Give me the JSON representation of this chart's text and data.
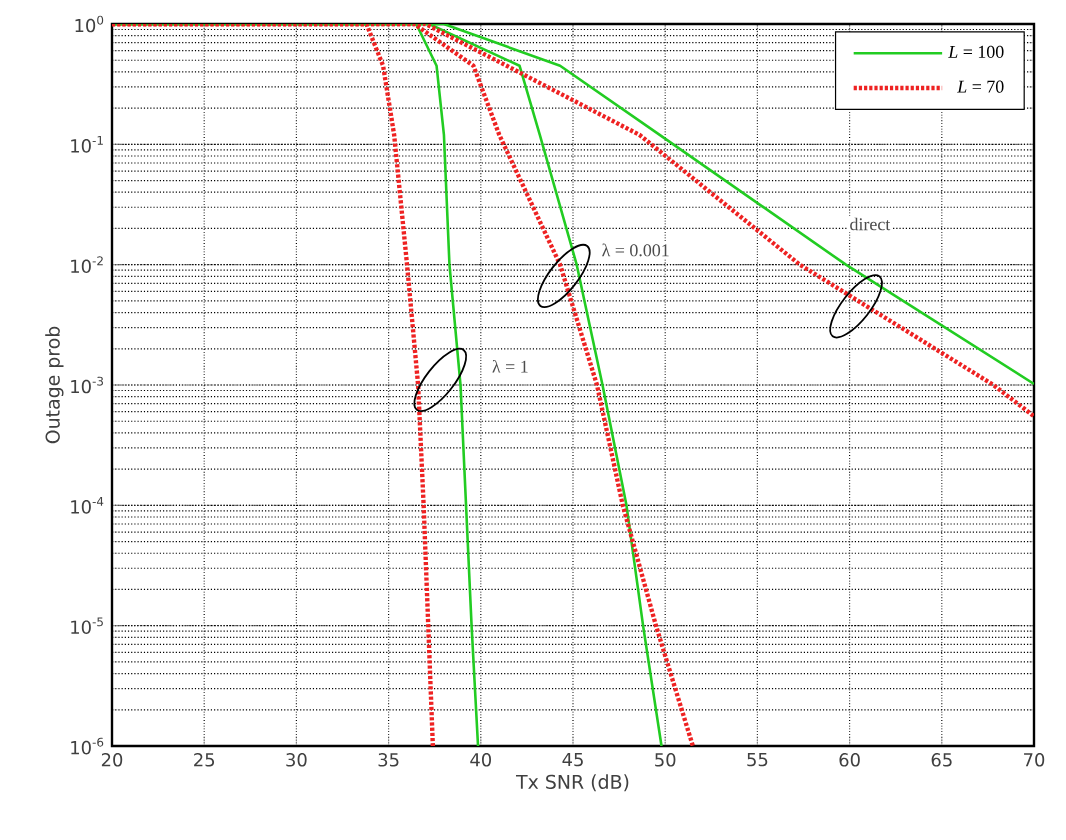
{
  "chart_data": {
    "type": "line",
    "xlabel": "Tx SNR (dB)",
    "ylabel": "Outage prob",
    "log": "y",
    "grid": true,
    "legend": "top right",
    "marker": "none",
    "xlim": [
      20,
      70
    ],
    "xticks": [
      20,
      25,
      30,
      35,
      40,
      45,
      50,
      55,
      60,
      65,
      70
    ],
    "ylim": [
      1e-06,
      1
    ],
    "yticks": [
      {
        "value": 1e-06,
        "label": "10$^{-6}$"
      },
      {
        "value": 1e-05,
        "label": "10$^{-5}$"
      },
      {
        "value": 0.0001,
        "label": "10$^{-4}$"
      },
      {
        "value": 0.001,
        "label": "10$^{-3}$"
      },
      {
        "value": 0.01,
        "label": "10$^{-2}$"
      },
      {
        "value": 0.1,
        "label": "10$^{-1}$"
      },
      {
        "value": 1,
        "label": "10$^{0}$"
      }
    ],
    "series": [
      {
        "name": "*L* = 100",
        "color": "#22cc22",
        "line_style": "solid",
        "x": [
          20,
          36.5,
          37.6,
          38.0,
          38.3,
          38.9,
          39.2,
          39.5,
          39.85
        ],
        "values": [
          1,
          1,
          0.45,
          0.12,
          0.01,
          0.001,
          0.0001,
          1e-05,
          1e-06
        ]
      },
      {
        "name": "*L* = 70",
        "color": "#ee2222",
        "line_style": "dotted",
        "x": [
          20,
          33.8,
          34.7,
          35.3,
          36.0,
          36.6,
          36.9,
          37.15,
          37.4
        ],
        "values": [
          1,
          1,
          0.45,
          0.12,
          0.01,
          0.001,
          0.0001,
          1e-05,
          1e-06
        ]
      },
      {
        "color": "#22cc22",
        "line_style": "solid",
        "x": [
          20,
          37.2,
          42.1,
          43.2,
          45.2,
          46.6,
          47.9,
          48.8,
          49.8
        ],
        "values": [
          1,
          1,
          0.45,
          0.12,
          0.01,
          0.001,
          0.0001,
          1e-05,
          1e-06
        ]
      },
      {
        "color": "#ee2222",
        "line_style": "dotted",
        "x": [
          20,
          36.4,
          39.6,
          41.0,
          44.3,
          46.3,
          47.7,
          49.5,
          51.5
        ],
        "values": [
          1,
          1,
          0.45,
          0.12,
          0.01,
          0.001,
          0.0001,
          1e-05,
          1e-06
        ]
      },
      {
        "color": "#22cc22",
        "line_style": "solid",
        "x": [
          20,
          38,
          44.3,
          49.7,
          59.8,
          70
        ],
        "values": [
          1,
          1,
          0.45,
          0.12,
          0.01,
          0.00102
        ]
      },
      {
        "color": "#ee2222",
        "line_style": "dotted",
        "x": [
          20,
          37,
          41.4,
          48.6,
          57.3,
          67.8,
          70
        ],
        "values": [
          1,
          1,
          0.45,
          0.12,
          0.01,
          0.001,
          0.00055
        ]
      }
    ],
    "annotations": [
      "λ = 1",
      "λ = 0.001",
      "direct"
    ]
  }
}
